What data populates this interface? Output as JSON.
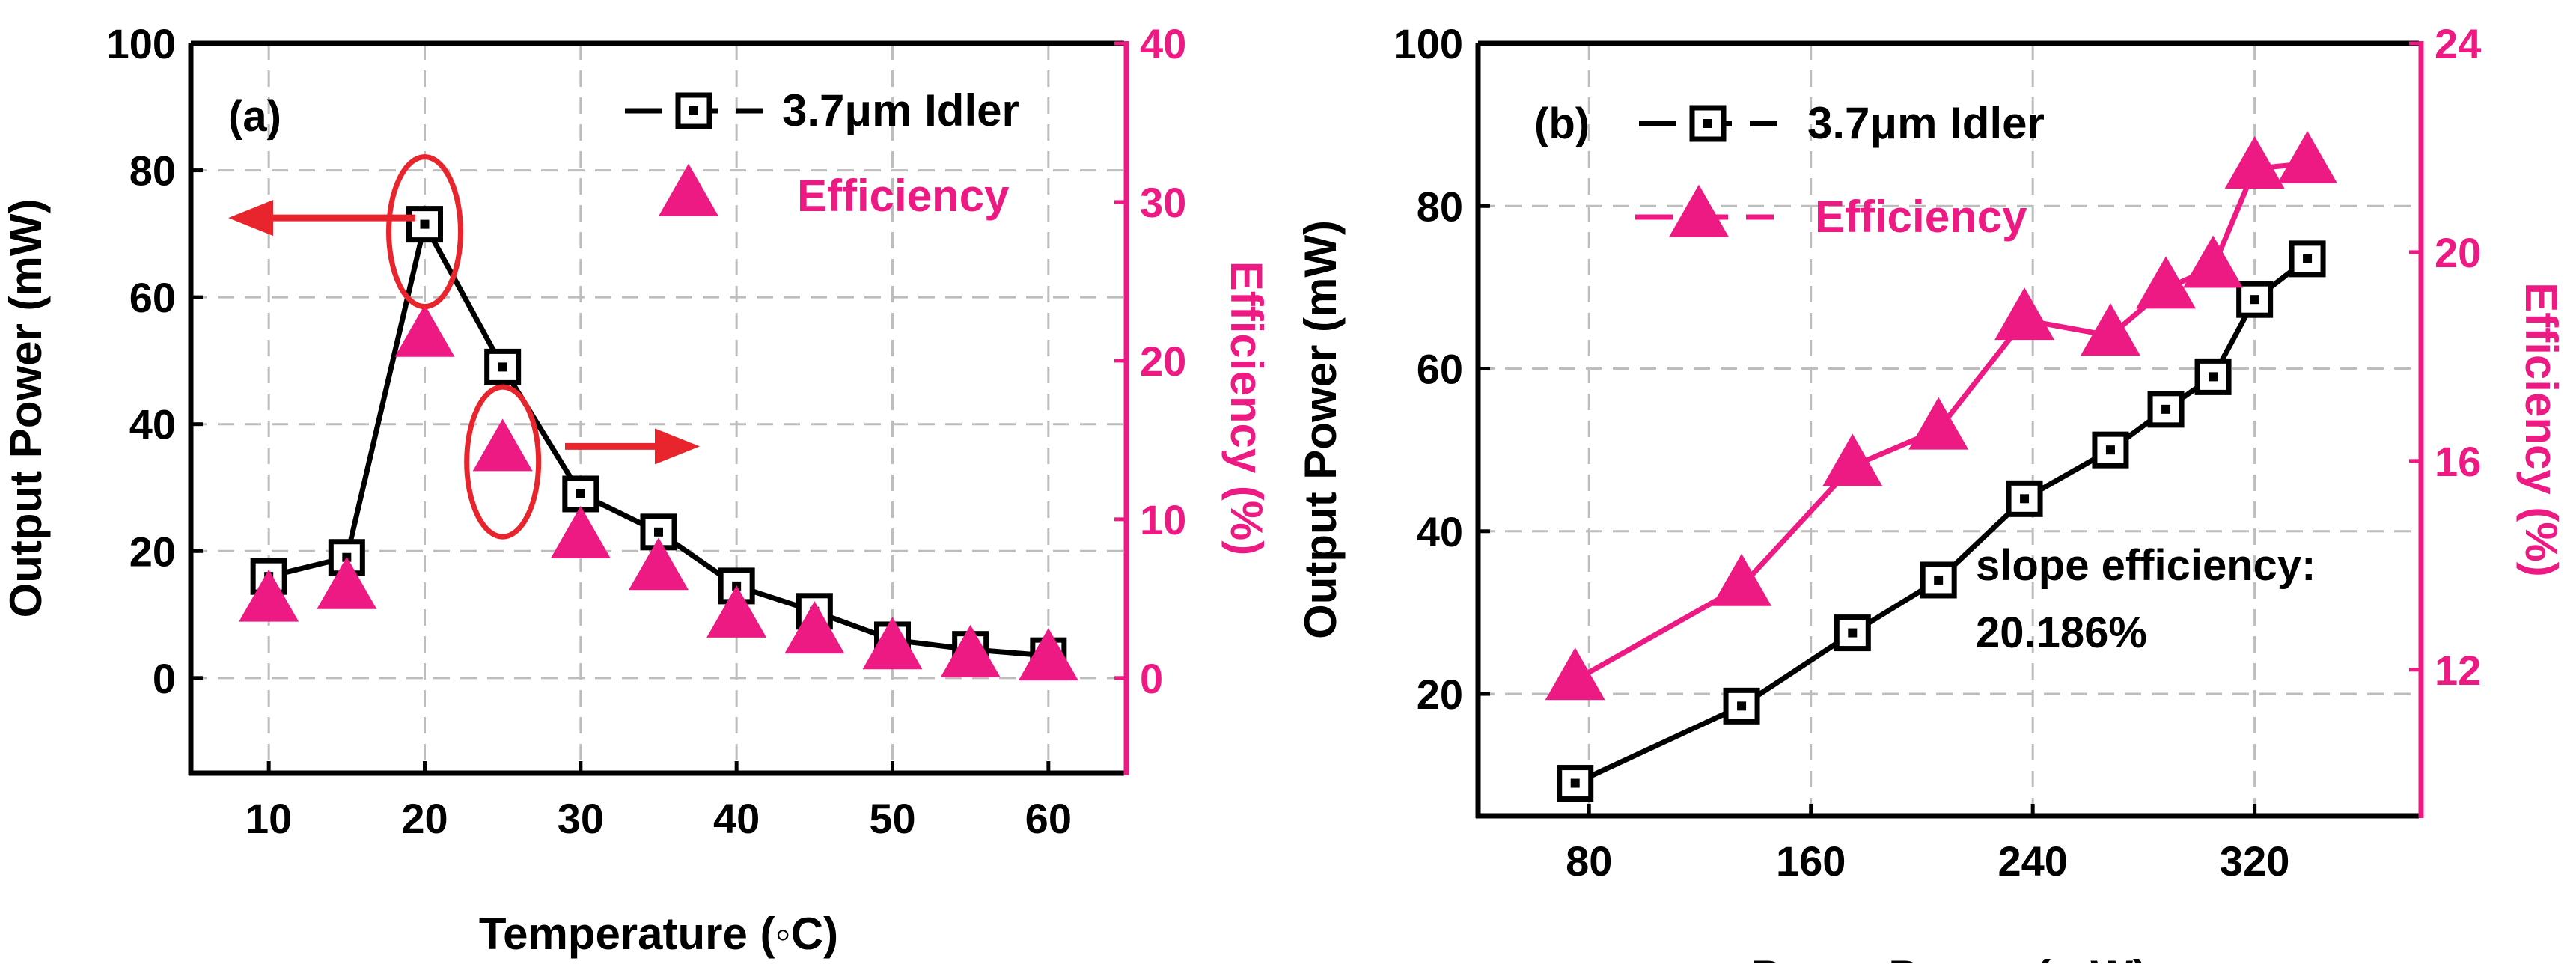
{
  "colors": {
    "idler": "#000000",
    "efficiency": "#ee1a83",
    "arrow": "#e8242c",
    "grid": "#bdbdbd"
  },
  "chart_data": [
    {
      "type": "line",
      "panel_label": "(a)",
      "xlabel": "Temperature (◦C)",
      "ylabel_left": "Output Power (mW)",
      "ylabel_right": "Efficiency (%)",
      "xlim": [
        5,
        65
      ],
      "ylim_left": [
        -15,
        100
      ],
      "ylim_right": [
        -6,
        40
      ],
      "x_ticks": [
        "10",
        "20",
        "30",
        "40",
        "50",
        "60"
      ],
      "x_tick_values": [
        10,
        20,
        30,
        40,
        50,
        60
      ],
      "y_left_ticks": [
        "0",
        "20",
        "40",
        "60",
        "80",
        "100"
      ],
      "y_left_tick_values": [
        0,
        20,
        40,
        60,
        80,
        100
      ],
      "y_right_ticks": [
        "0",
        "10",
        "20",
        "30",
        "40"
      ],
      "y_right_tick_values": [
        0,
        10,
        20,
        30,
        40
      ],
      "legend": [
        "3.7μm Idler",
        "Efficiency"
      ],
      "series": [
        {
          "name": "3.7μm Idler",
          "axis": "left",
          "marker": "square",
          "line": true,
          "x": [
            10,
            15,
            20,
            25,
            30,
            35,
            40,
            45,
            50,
            55,
            60
          ],
          "values": [
            16,
            19,
            71.5,
            49,
            29,
            23,
            14.5,
            10.5,
            6,
            4.5,
            3.5
          ]
        },
        {
          "name": "Efficiency",
          "axis": "right",
          "marker": "triangle",
          "line": false,
          "x": [
            10,
            15,
            20,
            25,
            30,
            35,
            40,
            45,
            50,
            55,
            60
          ],
          "values": [
            4.8,
            5.6,
            21.5,
            14.3,
            8.8,
            6.8,
            3.8,
            2.8,
            1.8,
            1.3,
            1.1
          ]
        }
      ],
      "annotations": [
        {
          "type": "ellipse",
          "around_x": 20,
          "axis": "left",
          "around_y": 71.5
        },
        {
          "type": "ellipse",
          "around_x": 25,
          "axis": "left",
          "around_y": 35
        },
        {
          "type": "arrow",
          "direction": "left",
          "points_to": "left axis"
        },
        {
          "type": "arrow",
          "direction": "right",
          "points_to": "right axis"
        }
      ]
    },
    {
      "type": "line",
      "panel_label": "(b)",
      "xlabel": "Pump Power (mW)",
      "ylabel_left": "Output Power (mW)",
      "ylabel_right": "Efficiency (%)",
      "xlim": [
        40,
        380
      ],
      "ylim_left": [
        5,
        100
      ],
      "ylim_right": [
        9.2,
        24
      ],
      "x_ticks": [
        "80",
        "160",
        "240",
        "320"
      ],
      "x_tick_values": [
        80,
        160,
        240,
        320
      ],
      "y_left_ticks": [
        "20",
        "40",
        "60",
        "80",
        "100"
      ],
      "y_left_tick_values": [
        20,
        40,
        60,
        80,
        100
      ],
      "y_right_ticks": [
        "12",
        "16",
        "20",
        "24"
      ],
      "y_right_tick_values": [
        12,
        16,
        20,
        24
      ],
      "legend": [
        "3.7μm Idler",
        "Efficiency"
      ],
      "slope_text": [
        "slope efficiency:",
        "20.186%"
      ],
      "series": [
        {
          "name": "3.7μm Idler",
          "axis": "left",
          "marker": "square",
          "line": true,
          "x": [
            75,
            135,
            175,
            206,
            237,
            268,
            288,
            305,
            320,
            339
          ],
          "values": [
            9,
            18.5,
            27.5,
            34,
            44,
            50,
            55,
            59,
            68.5,
            73.5
          ]
        },
        {
          "name": "Efficiency",
          "axis": "right",
          "marker": "triangle",
          "line": true,
          "x": [
            75,
            135,
            175,
            206,
            237,
            268,
            288,
            305,
            320,
            339
          ],
          "values": [
            11.8,
            13.6,
            15.9,
            16.6,
            18.7,
            18.4,
            19.3,
            19.7,
            21.6,
            21.7
          ]
        }
      ]
    }
  ]
}
